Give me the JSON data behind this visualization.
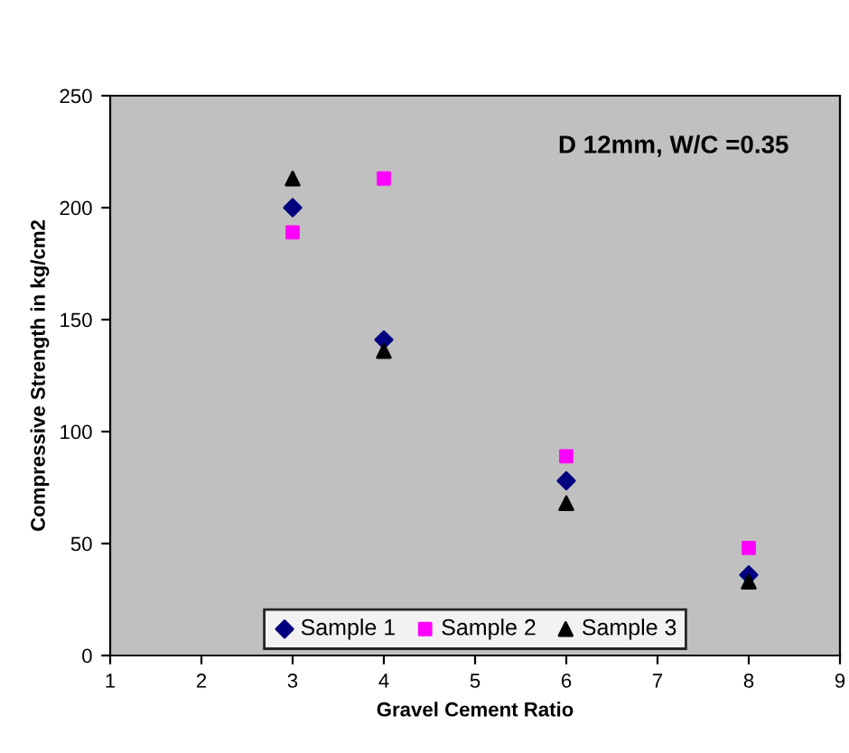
{
  "chart_data": {
    "type": "scatter",
    "xlabel": "Gravel Cement Ratio",
    "ylabel": "Compressive Strength in kg/cm2",
    "x": [
      3,
      4,
      6,
      8
    ],
    "series": [
      {
        "name": "Sample 1",
        "color": "#000080",
        "marker": "diamond",
        "values": [
          200,
          141,
          78,
          36
        ]
      },
      {
        "name": "Sample 2",
        "color": "#ff00ff",
        "marker": "square",
        "values": [
          189,
          213,
          89,
          48
        ]
      },
      {
        "name": "Sample 3",
        "color": "#000000",
        "marker": "triangle",
        "values": [
          213,
          136,
          68,
          33
        ]
      }
    ],
    "xlim": [
      1,
      9
    ],
    "xticks": [
      1,
      2,
      3,
      4,
      5,
      6,
      7,
      8,
      9
    ],
    "ylim": [
      0,
      250
    ],
    "yticks": [
      0,
      50,
      100,
      150,
      200,
      250
    ],
    "annotations": [
      "D 12mm, W/C =0.35"
    ],
    "grid": false,
    "legend": "bottom"
  }
}
